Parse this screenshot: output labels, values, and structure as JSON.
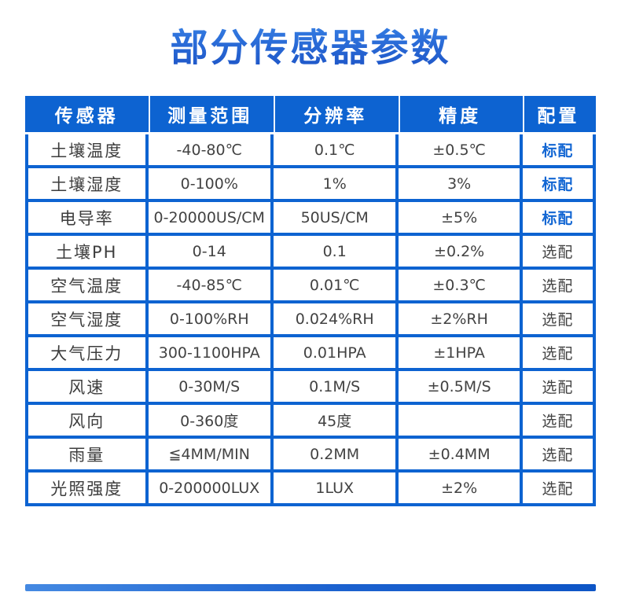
{
  "title": "部分传感器参数",
  "colors": {
    "table_blue": "#0d63d1",
    "standard_text_blue": "#1266d3",
    "body_text_gray": "#424242",
    "title_blue_top": "#55a0f0",
    "title_blue_bottom": "#1a4fc3"
  },
  "table": {
    "headers": [
      "传感器",
      "测量范围",
      "分辨率",
      "精度",
      "配置"
    ],
    "rows": [
      {
        "sensor": "土壤温度",
        "range": "-40-80℃",
        "resolution": "0.1℃",
        "accuracy": "±0.5℃",
        "config": "标配"
      },
      {
        "sensor": "土壤湿度",
        "range": "0-100%",
        "resolution": "1%",
        "accuracy": "3%",
        "config": "标配"
      },
      {
        "sensor": "电导率",
        "range": "0-20000US/CM",
        "resolution": "50US/CM",
        "accuracy": "±5%",
        "config": "标配"
      },
      {
        "sensor": "土壤PH",
        "range": "0-14",
        "resolution": "0.1",
        "accuracy": "±0.2%",
        "config": "选配"
      },
      {
        "sensor": "空气温度",
        "range": "-40-85℃",
        "resolution": "0.01℃",
        "accuracy": "±0.3℃",
        "config": "选配"
      },
      {
        "sensor": "空气湿度",
        "range": "0-100%RH",
        "resolution": "0.024%RH",
        "accuracy": "±2%RH",
        "config": "选配"
      },
      {
        "sensor": "大气压力",
        "range": "300-1100HPA",
        "resolution": "0.01HPA",
        "accuracy": "±1HPA",
        "config": "选配"
      },
      {
        "sensor": "风速",
        "range": "0-30M/S",
        "resolution": "0.1M/S",
        "accuracy": "±0.5M/S",
        "config": "选配"
      },
      {
        "sensor": "风向",
        "range": "0-360度",
        "resolution": "45度",
        "accuracy": "",
        "config": "选配"
      },
      {
        "sensor": "雨量",
        "range": "≦4MM/MIN",
        "resolution": "0.2MM",
        "accuracy": "±0.4MM",
        "config": "选配"
      },
      {
        "sensor": "光照强度",
        "range": "0-200000LUX",
        "resolution": "1LUX",
        "accuracy": "±2%",
        "config": "选配"
      }
    ]
  }
}
